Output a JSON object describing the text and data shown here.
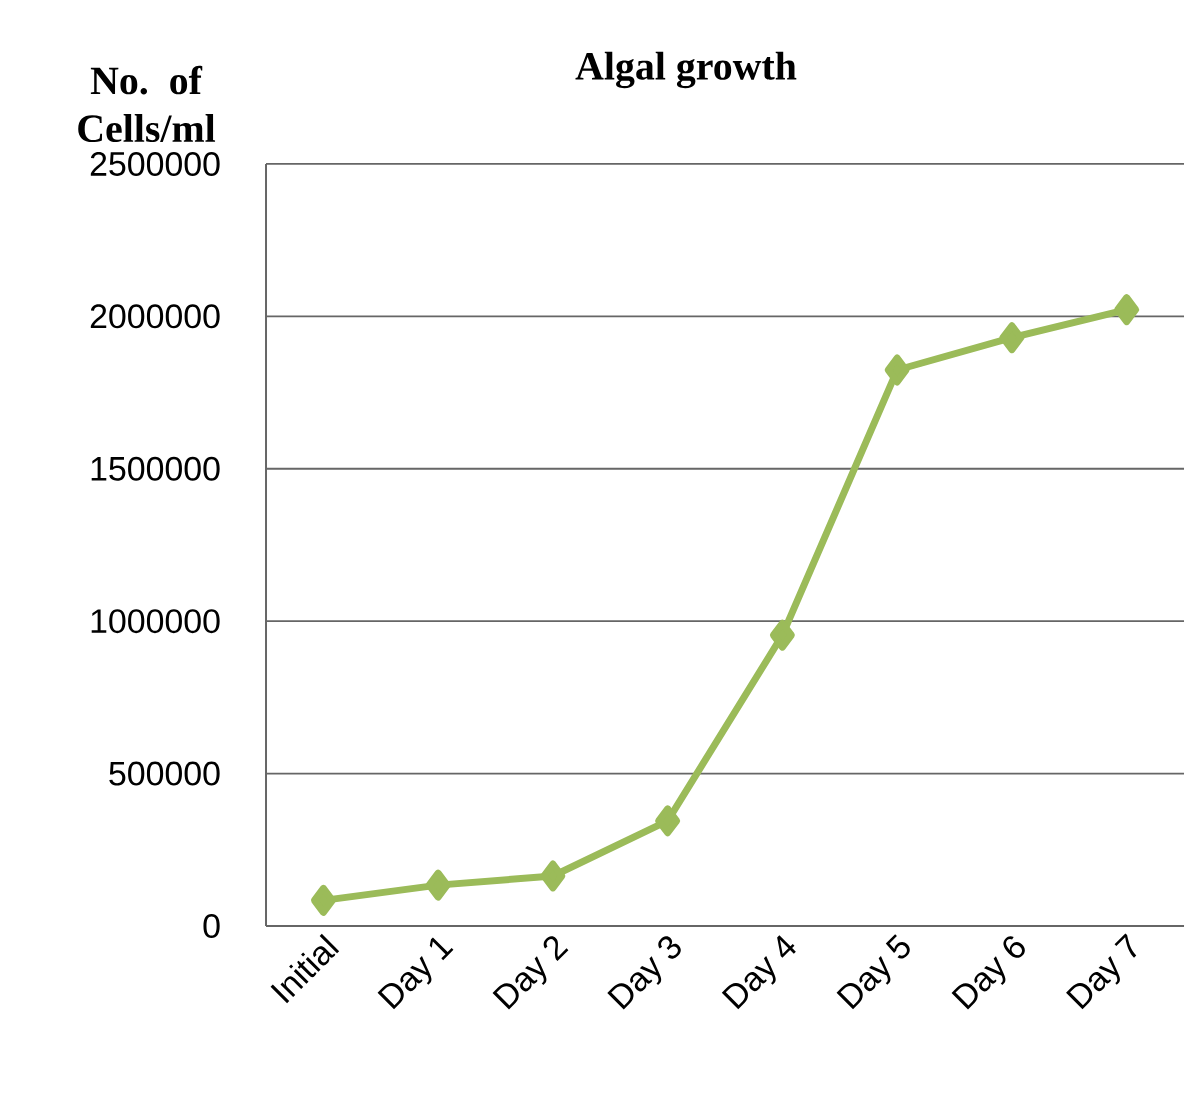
{
  "chart_data": {
    "type": "line",
    "title": "Algal growth",
    "ylabel": "No. of Cells/ml",
    "categories": [
      "Initial",
      "Day 1",
      "Day 2",
      "Day 3",
      "Day 4",
      "Day 5",
      "Day 6",
      "Day 7"
    ],
    "series": [
      {
        "color": "#9bbb59",
        "values": [
          84000,
          134000,
          164000,
          345000,
          954000,
          1824000,
          1930000,
          2022000
        ]
      }
    ],
    "ylim": [
      0,
      2500000
    ],
    "yticks": [
      0,
      500000,
      1000000,
      1500000,
      2000000,
      2500000
    ],
    "grid": "y",
    "marker": "diamond",
    "line_style": "solid"
  }
}
